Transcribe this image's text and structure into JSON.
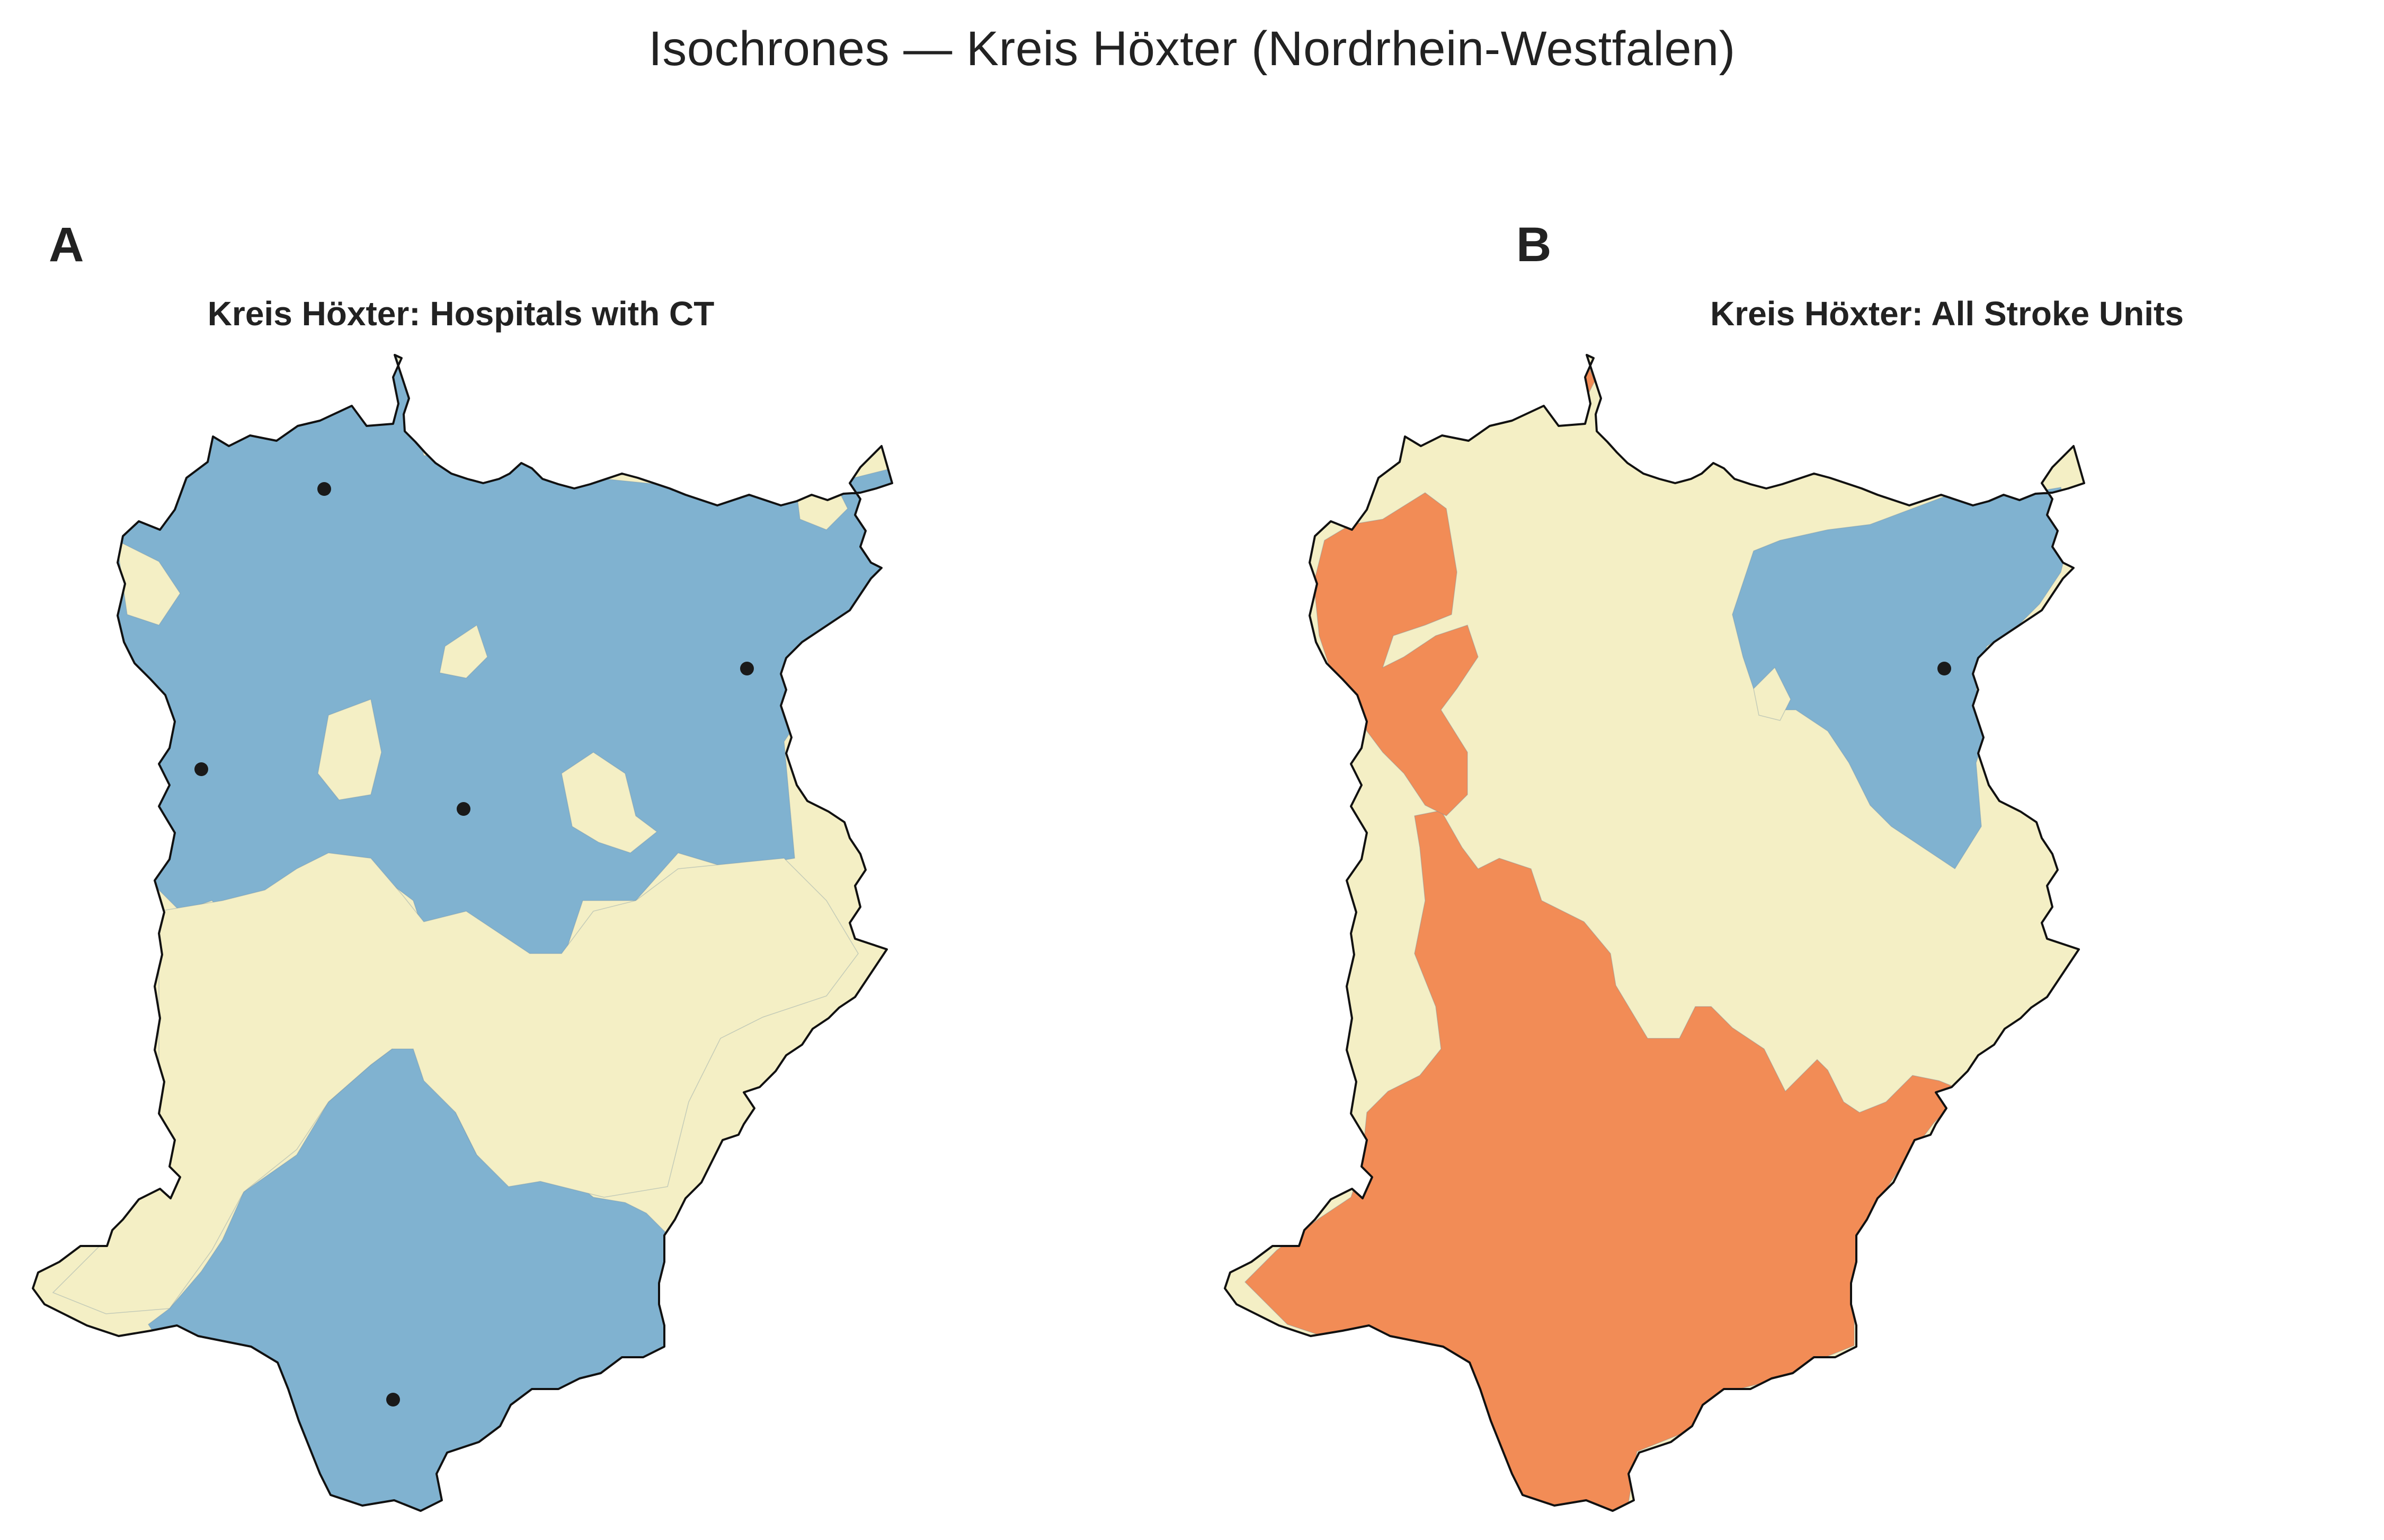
{
  "title": "Isochrones — Kreis Höxter (Nordrhein-Westfalen)",
  "colors": {
    "outside": "#f4efc5",
    "ct_reach": "#80b2d0",
    "stroke_reach_near": "#80b2d0",
    "stroke_reach_far": "#f28c56",
    "border": "#111111",
    "hospital_marker": "#1a1a1a"
  },
  "panels": [
    {
      "letter": "A",
      "title": "Kreis Höxter: Hospitals with CT",
      "hospitals_icon": "hospital-dot-icon"
    },
    {
      "letter": "B",
      "title": "Kreis Höxter: All Stroke Units",
      "hospitals_icon": "hospital-dot-icon"
    }
  ]
}
